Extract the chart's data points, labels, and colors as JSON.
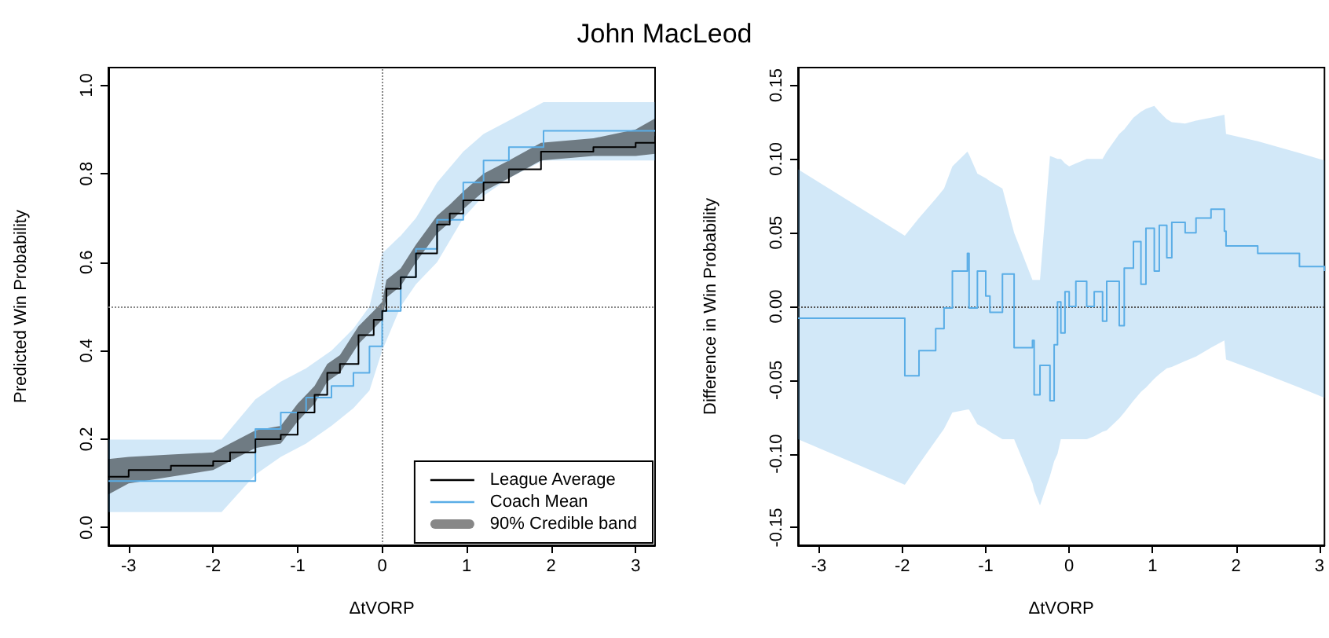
{
  "chart_data": [
    {
      "type": "step",
      "title": "John MacLeod",
      "xlabel": "ΔtVORP",
      "ylabel": "Predicted Win Probability",
      "xlim": [
        -3.24,
        3.23
      ],
      "ylim": [
        -0.04,
        1.04
      ],
      "xticks": [
        -3,
        -2,
        -1,
        0,
        1,
        2,
        3
      ],
      "yticks": [
        {
          "value": 0,
          "label": "0.0"
        },
        {
          "value": 0.2,
          "label": "0.2"
        },
        {
          "value": 0.4,
          "label": "0.4"
        },
        {
          "value": 0.6,
          "label": "0.6"
        },
        {
          "value": 0.8,
          "label": "0.8"
        },
        {
          "value": 1,
          "label": "1.0"
        }
      ],
      "legend": "bottom right",
      "marker": "none",
      "annotations": [
        "90% Credible band"
      ],
      "ref_lines": [
        {
          "axis": "x",
          "value": 0,
          "color": "#888888",
          "line_style": "dotted"
        },
        {
          "axis": "y",
          "value": 0.5,
          "color": "#888888",
          "line_style": "dotted"
        }
      ],
      "series": [
        {
          "name": "Coach Mean",
          "color": "#5aade6",
          "x": [
            -3.24,
            -1.9,
            -1.5,
            -1.2,
            -0.9,
            -0.6,
            -0.34,
            -0.15,
            0,
            0.22,
            0.4,
            0.65,
            0.96,
            1.2,
            1.5,
            1.91,
            3.23
          ],
          "values": [
            0.105,
            0.105,
            0.223,
            0.26,
            0.294,
            0.32,
            0.35,
            0.41,
            0.49,
            0.566,
            0.63,
            0.696,
            0.78,
            0.83,
            0.86,
            0.897,
            0.897
          ],
          "lower": [
            0.035,
            0.035,
            0.12,
            0.16,
            0.19,
            0.23,
            0.27,
            0.31,
            0.4,
            0.5,
            0.55,
            0.6,
            0.7,
            0.75,
            0.79,
            0.83,
            0.83
          ],
          "upper": [
            0.199,
            0.199,
            0.29,
            0.33,
            0.36,
            0.4,
            0.45,
            0.5,
            0.62,
            0.66,
            0.7,
            0.78,
            0.85,
            0.89,
            0.92,
            0.962,
            0.962
          ]
        },
        {
          "name": "League Average",
          "color": "#000000",
          "x": [
            -3.24,
            -3,
            -2.5,
            -2,
            -1.8,
            -1.5,
            -1.2,
            -1,
            -0.8,
            -0.65,
            -0.5,
            -0.28,
            -0.1,
            0,
            0.05,
            0.22,
            0.4,
            0.65,
            0.8,
            0.96,
            1.2,
            1.5,
            1.88,
            2.5,
            3,
            3.23
          ],
          "values": [
            0.115,
            0.13,
            0.14,
            0.15,
            0.17,
            0.2,
            0.21,
            0.26,
            0.3,
            0.35,
            0.37,
            0.435,
            0.47,
            0.49,
            0.54,
            0.566,
            0.62,
            0.685,
            0.71,
            0.74,
            0.78,
            0.81,
            0.85,
            0.86,
            0.87,
            0.885
          ],
          "lower": [
            0.075,
            0.1,
            0.115,
            0.13,
            0.15,
            0.18,
            0.19,
            0.24,
            0.28,
            0.33,
            0.35,
            0.415,
            0.45,
            0.47,
            0.52,
            0.546,
            0.6,
            0.665,
            0.69,
            0.72,
            0.76,
            0.79,
            0.83,
            0.84,
            0.84,
            0.845
          ],
          "upper": [
            0.155,
            0.16,
            0.165,
            0.17,
            0.19,
            0.22,
            0.23,
            0.28,
            0.32,
            0.37,
            0.39,
            0.455,
            0.49,
            0.51,
            0.56,
            0.586,
            0.64,
            0.705,
            0.73,
            0.76,
            0.8,
            0.83,
            0.87,
            0.88,
            0.9,
            0.925
          ]
        }
      ]
    },
    {
      "type": "step",
      "xlabel": "ΔtVORP",
      "ylabel": "Difference in Win Probability",
      "xlim": [
        -3.25,
        3.06
      ],
      "ylim": [
        -0.162,
        0.162
      ],
      "xticks": [
        -3,
        -2,
        -1,
        0,
        1,
        2,
        3
      ],
      "yticks": [
        {
          "value": -0.15,
          "label": "-0.15"
        },
        {
          "value": -0.1,
          "label": "-0.10"
        },
        {
          "value": -0.05,
          "label": "-0.05"
        },
        {
          "value": 0,
          "label": "0.00"
        },
        {
          "value": 0.05,
          "label": "0.05"
        },
        {
          "value": 0.1,
          "label": "0.10"
        },
        {
          "value": 0.15,
          "label": "0.15"
        }
      ],
      "marker": "none",
      "ref_lines": [
        {
          "axis": "y",
          "value": 0,
          "color": "#555555",
          "line_style": "dotted"
        }
      ],
      "series": [
        {
          "color": "#5aade6",
          "x": [
            -3.25,
            -1.97,
            -1.8,
            -1.6,
            -1.5,
            -1.4,
            -1.22,
            -1.2,
            -1.1,
            -1.0,
            -0.95,
            -0.8,
            -0.66,
            -0.44,
            -0.42,
            -0.35,
            -0.23,
            -0.18,
            -0.14,
            -0.1,
            -0.05,
            0.0,
            0.08,
            0.21,
            0.3,
            0.4,
            0.45,
            0.6,
            0.66,
            0.77,
            0.86,
            0.92,
            1.02,
            1.08,
            1.17,
            1.23,
            1.39,
            1.52,
            1.7,
            1.86,
            1.88,
            2.26,
            2.76,
            3.06
          ],
          "values": [
            -0.008,
            -0.047,
            -0.03,
            -0.015,
            -0.001,
            0.024,
            0.036,
            -0.001,
            0.024,
            0.007,
            -0.004,
            0.022,
            -0.028,
            -0.023,
            -0.06,
            -0.04,
            -0.064,
            -0.026,
            0.003,
            -0.018,
            0.01,
            0.0,
            0.017,
            0.0,
            0.01,
            -0.01,
            0.017,
            -0.013,
            0.026,
            0.044,
            0.015,
            0.053,
            0.024,
            0.055,
            0.033,
            0.057,
            0.05,
            0.06,
            0.066,
            0.051,
            0.041,
            0.036,
            0.027,
            0.024
          ],
          "upper": [
            0.093,
            0.048,
            0.06,
            0.073,
            0.08,
            0.095,
            0.105,
            0.103,
            0.09,
            0.087,
            0.085,
            0.08,
            0.05,
            0.018,
            0.018,
            0.018,
            0.102,
            0.101,
            0.1,
            0.1,
            0.097,
            0.095,
            0.097,
            0.1,
            0.1,
            0.1,
            0.105,
            0.117,
            0.12,
            0.128,
            0.132,
            0.134,
            0.136,
            0.132,
            0.127,
            0.125,
            0.124,
            0.126,
            0.128,
            0.13,
            0.117,
            0.112,
            0.104,
            0.099
          ],
          "lower": [
            -0.09,
            -0.121,
            -0.107,
            -0.091,
            -0.083,
            -0.072,
            -0.07,
            -0.07,
            -0.08,
            -0.083,
            -0.085,
            -0.09,
            -0.09,
            -0.12,
            -0.125,
            -0.135,
            -0.115,
            -0.105,
            -0.1,
            -0.09,
            -0.09,
            -0.09,
            -0.09,
            -0.09,
            -0.088,
            -0.085,
            -0.084,
            -0.076,
            -0.072,
            -0.064,
            -0.058,
            -0.055,
            -0.049,
            -0.046,
            -0.042,
            -0.041,
            -0.037,
            -0.034,
            -0.028,
            -0.023,
            -0.036,
            -0.044,
            -0.055,
            -0.062
          ]
        }
      ]
    }
  ]
}
